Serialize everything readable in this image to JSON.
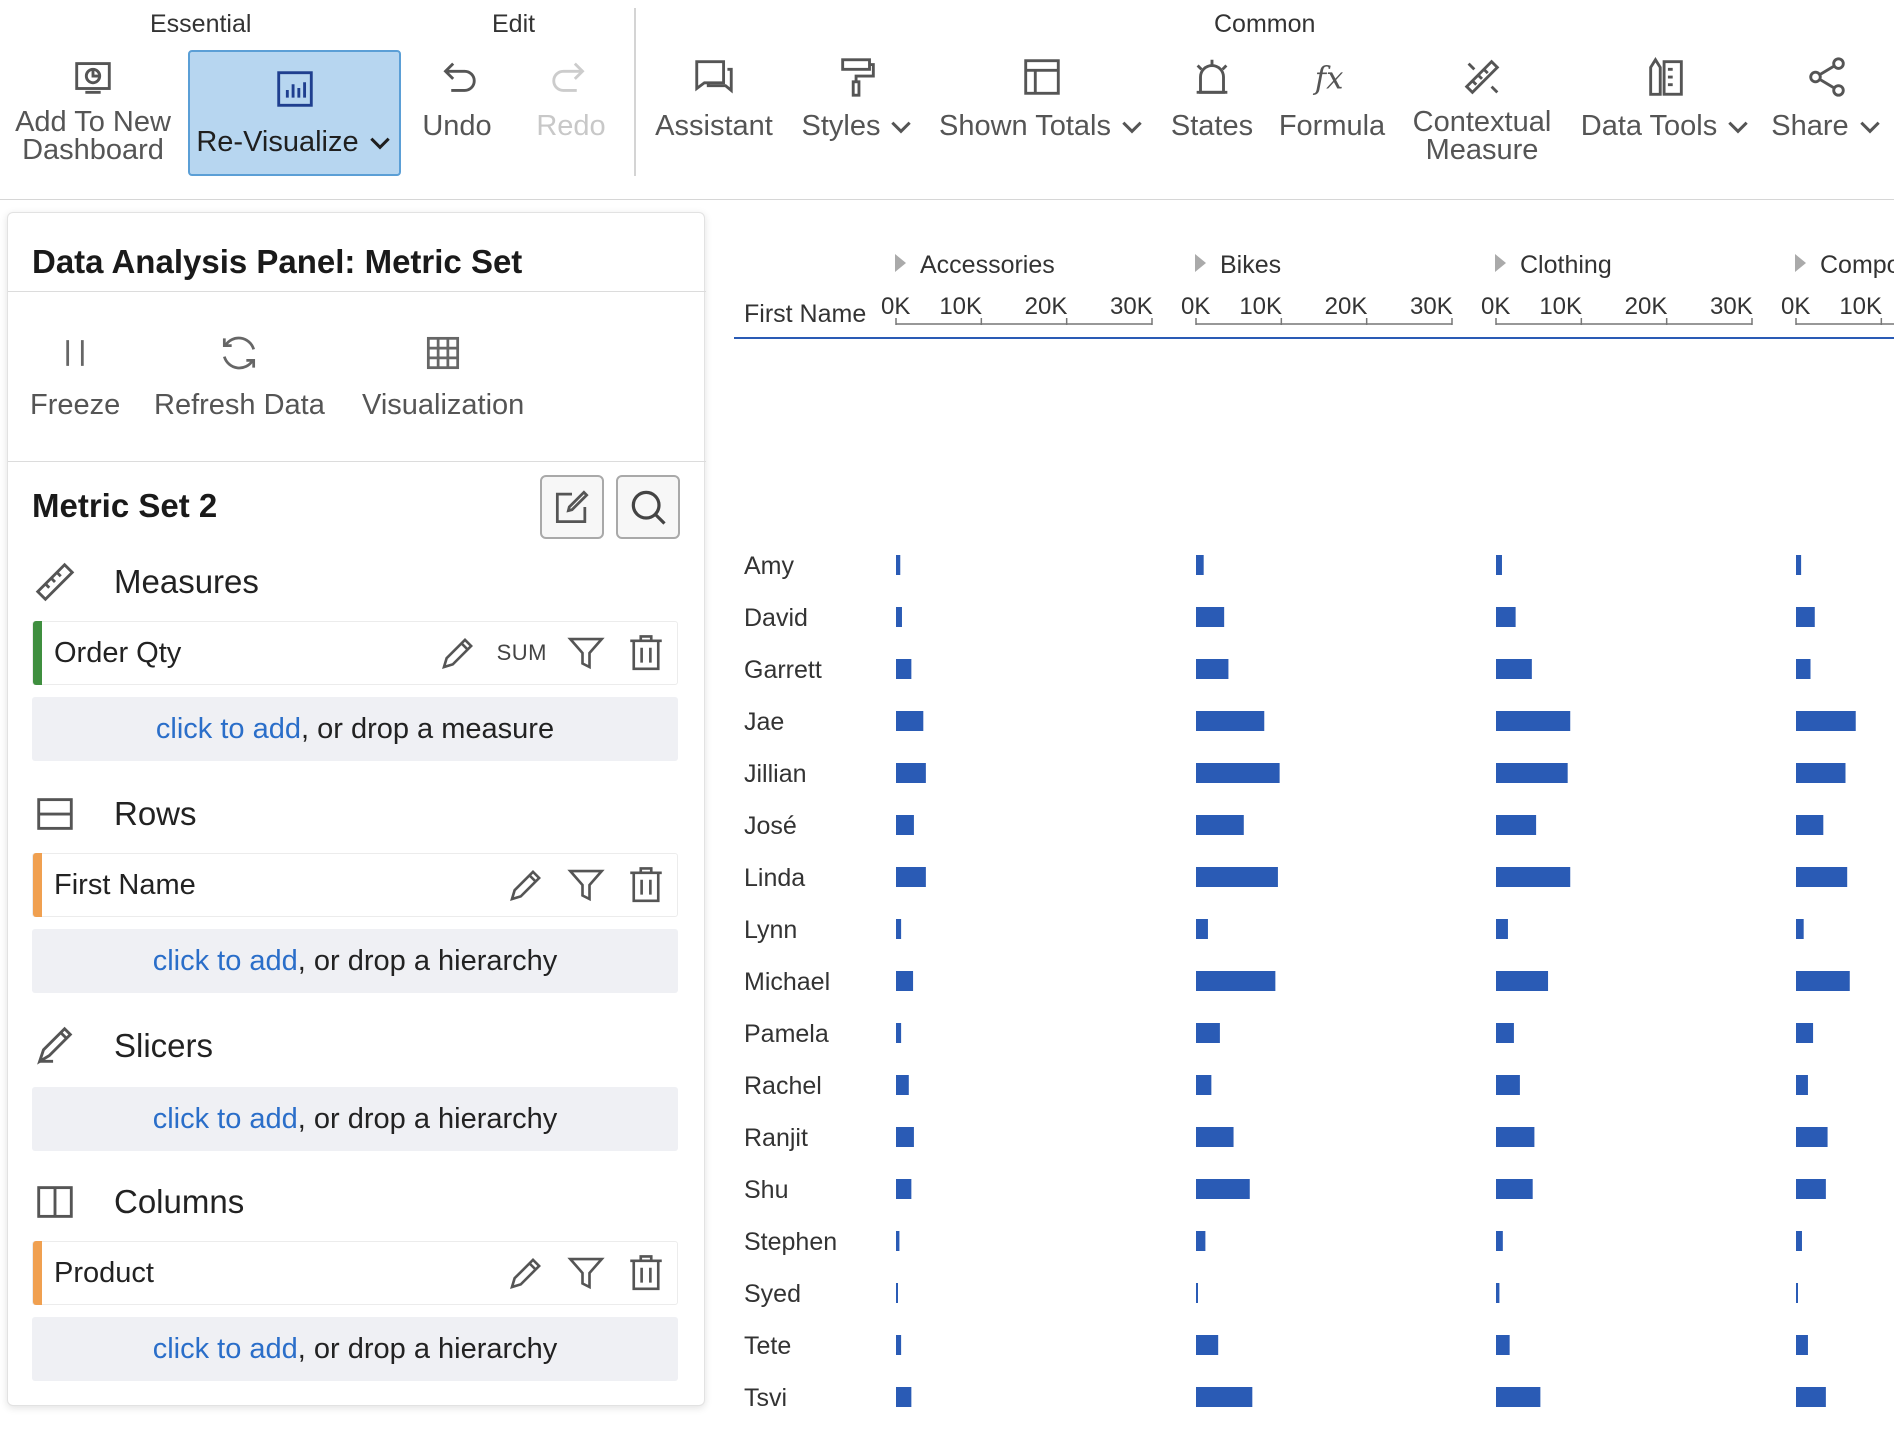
{
  "ribbon": {
    "groups": {
      "essential": "Essential",
      "edit": "Edit",
      "common": "Common"
    },
    "buttons": {
      "add_to_new_dashboard": [
        "Add To New",
        "Dashboard"
      ],
      "re_visualize": "Re-Visualize",
      "undo": "Undo",
      "redo": "Redo",
      "assistant": "Assistant",
      "styles": "Styles",
      "shown_totals": "Shown Totals",
      "states": "States",
      "formula": "Formula",
      "contextual_measure": [
        "Contextual",
        "Measure"
      ],
      "data_tools": "Data Tools",
      "share": "Share"
    }
  },
  "panel": {
    "title": "Data Analysis Panel: Metric Set",
    "tools": {
      "freeze": "Freeze",
      "refresh": "Refresh Data",
      "visualization": "Visualization"
    },
    "metric_set_title": "Metric Set 2",
    "sections": {
      "measures": "Measures",
      "rows": "Rows",
      "slicers": "Slicers",
      "columns": "Columns"
    },
    "fields": {
      "measure": {
        "name": "Order Qty",
        "aggregation": "SUM",
        "color": "#3f8f3f"
      },
      "row": {
        "name": "First Name",
        "color": "#f0a050"
      },
      "column": {
        "name": "Product",
        "color": "#f0a050"
      }
    },
    "dropzones": {
      "link_text": "click to add",
      "measure_suffix": ", or drop a measure",
      "hierarchy_suffix": ", or drop a hierarchy"
    }
  },
  "chart_data": {
    "type": "bar",
    "orientation": "horizontal-small-multiples",
    "row_header": "First Name",
    "categories": [
      "Amy",
      "David",
      "Garrett",
      "Jae",
      "Jillian",
      "José",
      "Linda",
      "Lynn",
      "Michael",
      "Pamela",
      "Rachel",
      "Ranjit",
      "Shu",
      "Stephen",
      "Syed",
      "Tete",
      "Tsvi"
    ],
    "tick_labels": [
      "0K",
      "10K",
      "20K",
      "30K"
    ],
    "xlim": [
      0,
      35000
    ],
    "bar_color": "#2a5bb5",
    "series": [
      {
        "name": "Accessories",
        "values": [
          500,
          700,
          1800,
          3200,
          3500,
          2100,
          3500,
          600,
          2000,
          600,
          1500,
          2100,
          1800,
          400,
          200,
          600,
          1800
        ]
      },
      {
        "name": "Bikes",
        "values": [
          900,
          3300,
          3800,
          8000,
          9800,
          5600,
          9600,
          1400,
          9300,
          2800,
          1800,
          4400,
          6300,
          1100,
          200,
          2600,
          6600
        ]
      },
      {
        "name": "Clothing",
        "values": [
          700,
          2300,
          4200,
          8700,
          8400,
          4700,
          8700,
          1400,
          6100,
          2100,
          2800,
          4500,
          4300,
          800,
          400,
          1600,
          5200
        ]
      },
      {
        "name": "Compo",
        "values": [
          600,
          2200,
          1700,
          7000,
          5800,
          3200,
          6000,
          900,
          6300,
          2000,
          1400,
          3700,
          3500,
          700,
          200,
          1400,
          3500
        ]
      }
    ]
  }
}
